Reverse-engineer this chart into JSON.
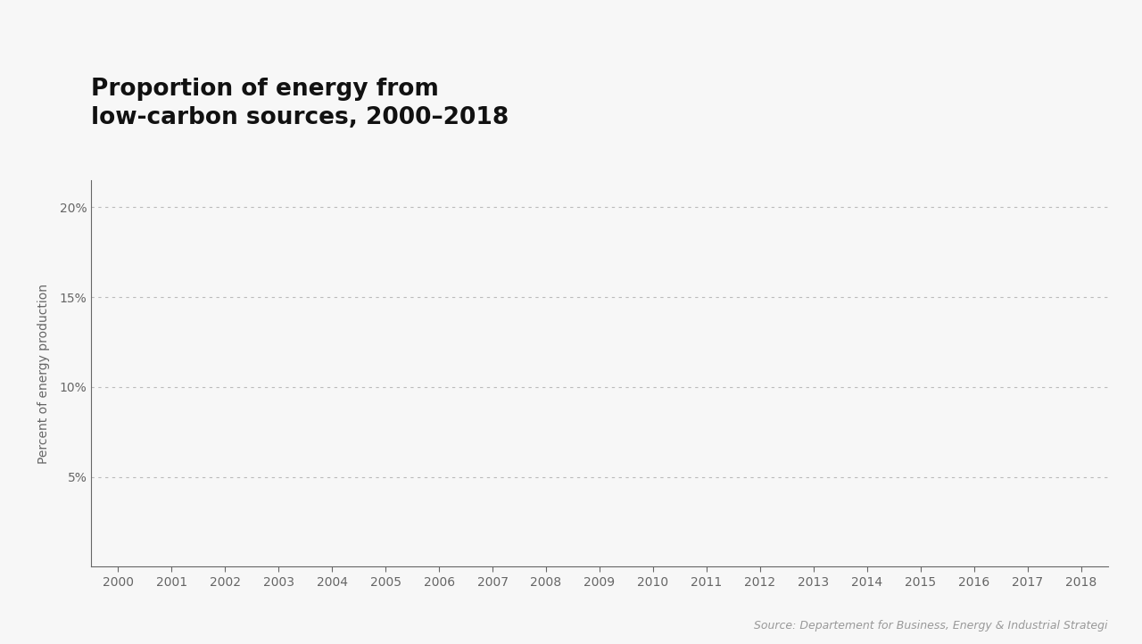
{
  "title_line1": "Proportion of energy from",
  "title_line2": "low-carbon sources, 2000–2018",
  "ylabel": "Percent of energy production",
  "source_text": "Source: Departement for Business, Energy & Industrial Strategi",
  "x_min": 2000,
  "x_max": 2018,
  "y_min": 0,
  "y_max": 0.215,
  "yticks": [
    0.05,
    0.1,
    0.15,
    0.2
  ],
  "ytick_labels": [
    "5%",
    "10%",
    "15%",
    "20%"
  ],
  "xticks": [
    2000,
    2001,
    2002,
    2003,
    2004,
    2005,
    2006,
    2007,
    2008,
    2009,
    2010,
    2011,
    2012,
    2013,
    2014,
    2015,
    2016,
    2017,
    2018
  ],
  "background_color": "#f7f7f7",
  "plot_background_color": "#f7f7f7",
  "grid_color": "#bbbbbb",
  "title_fontsize": 19,
  "axis_label_fontsize": 10,
  "tick_label_fontsize": 10,
  "source_fontsize": 9,
  "title_color": "#111111",
  "axis_color": "#666666",
  "source_color": "#999999"
}
